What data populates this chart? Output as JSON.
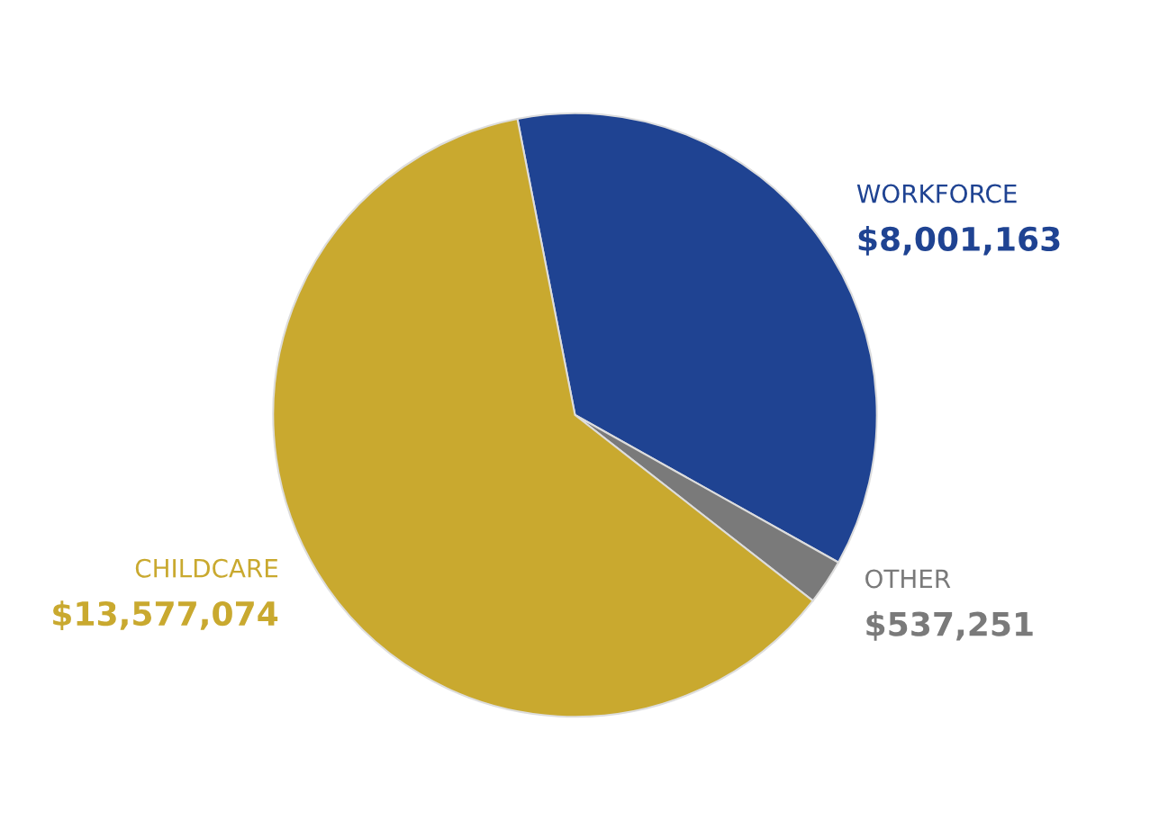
{
  "chart_data": {
    "type": "pie",
    "categories": [
      "WORKFORCE",
      "OTHER",
      "CHILDCARE"
    ],
    "values": [
      8001163,
      537251,
      13577074
    ],
    "colors": [
      "#1f4392",
      "#7a7a7a",
      "#c9a92f"
    ],
    "value_labels": [
      "$8,001,163",
      "$537,251",
      "$13,577,074"
    ]
  }
}
